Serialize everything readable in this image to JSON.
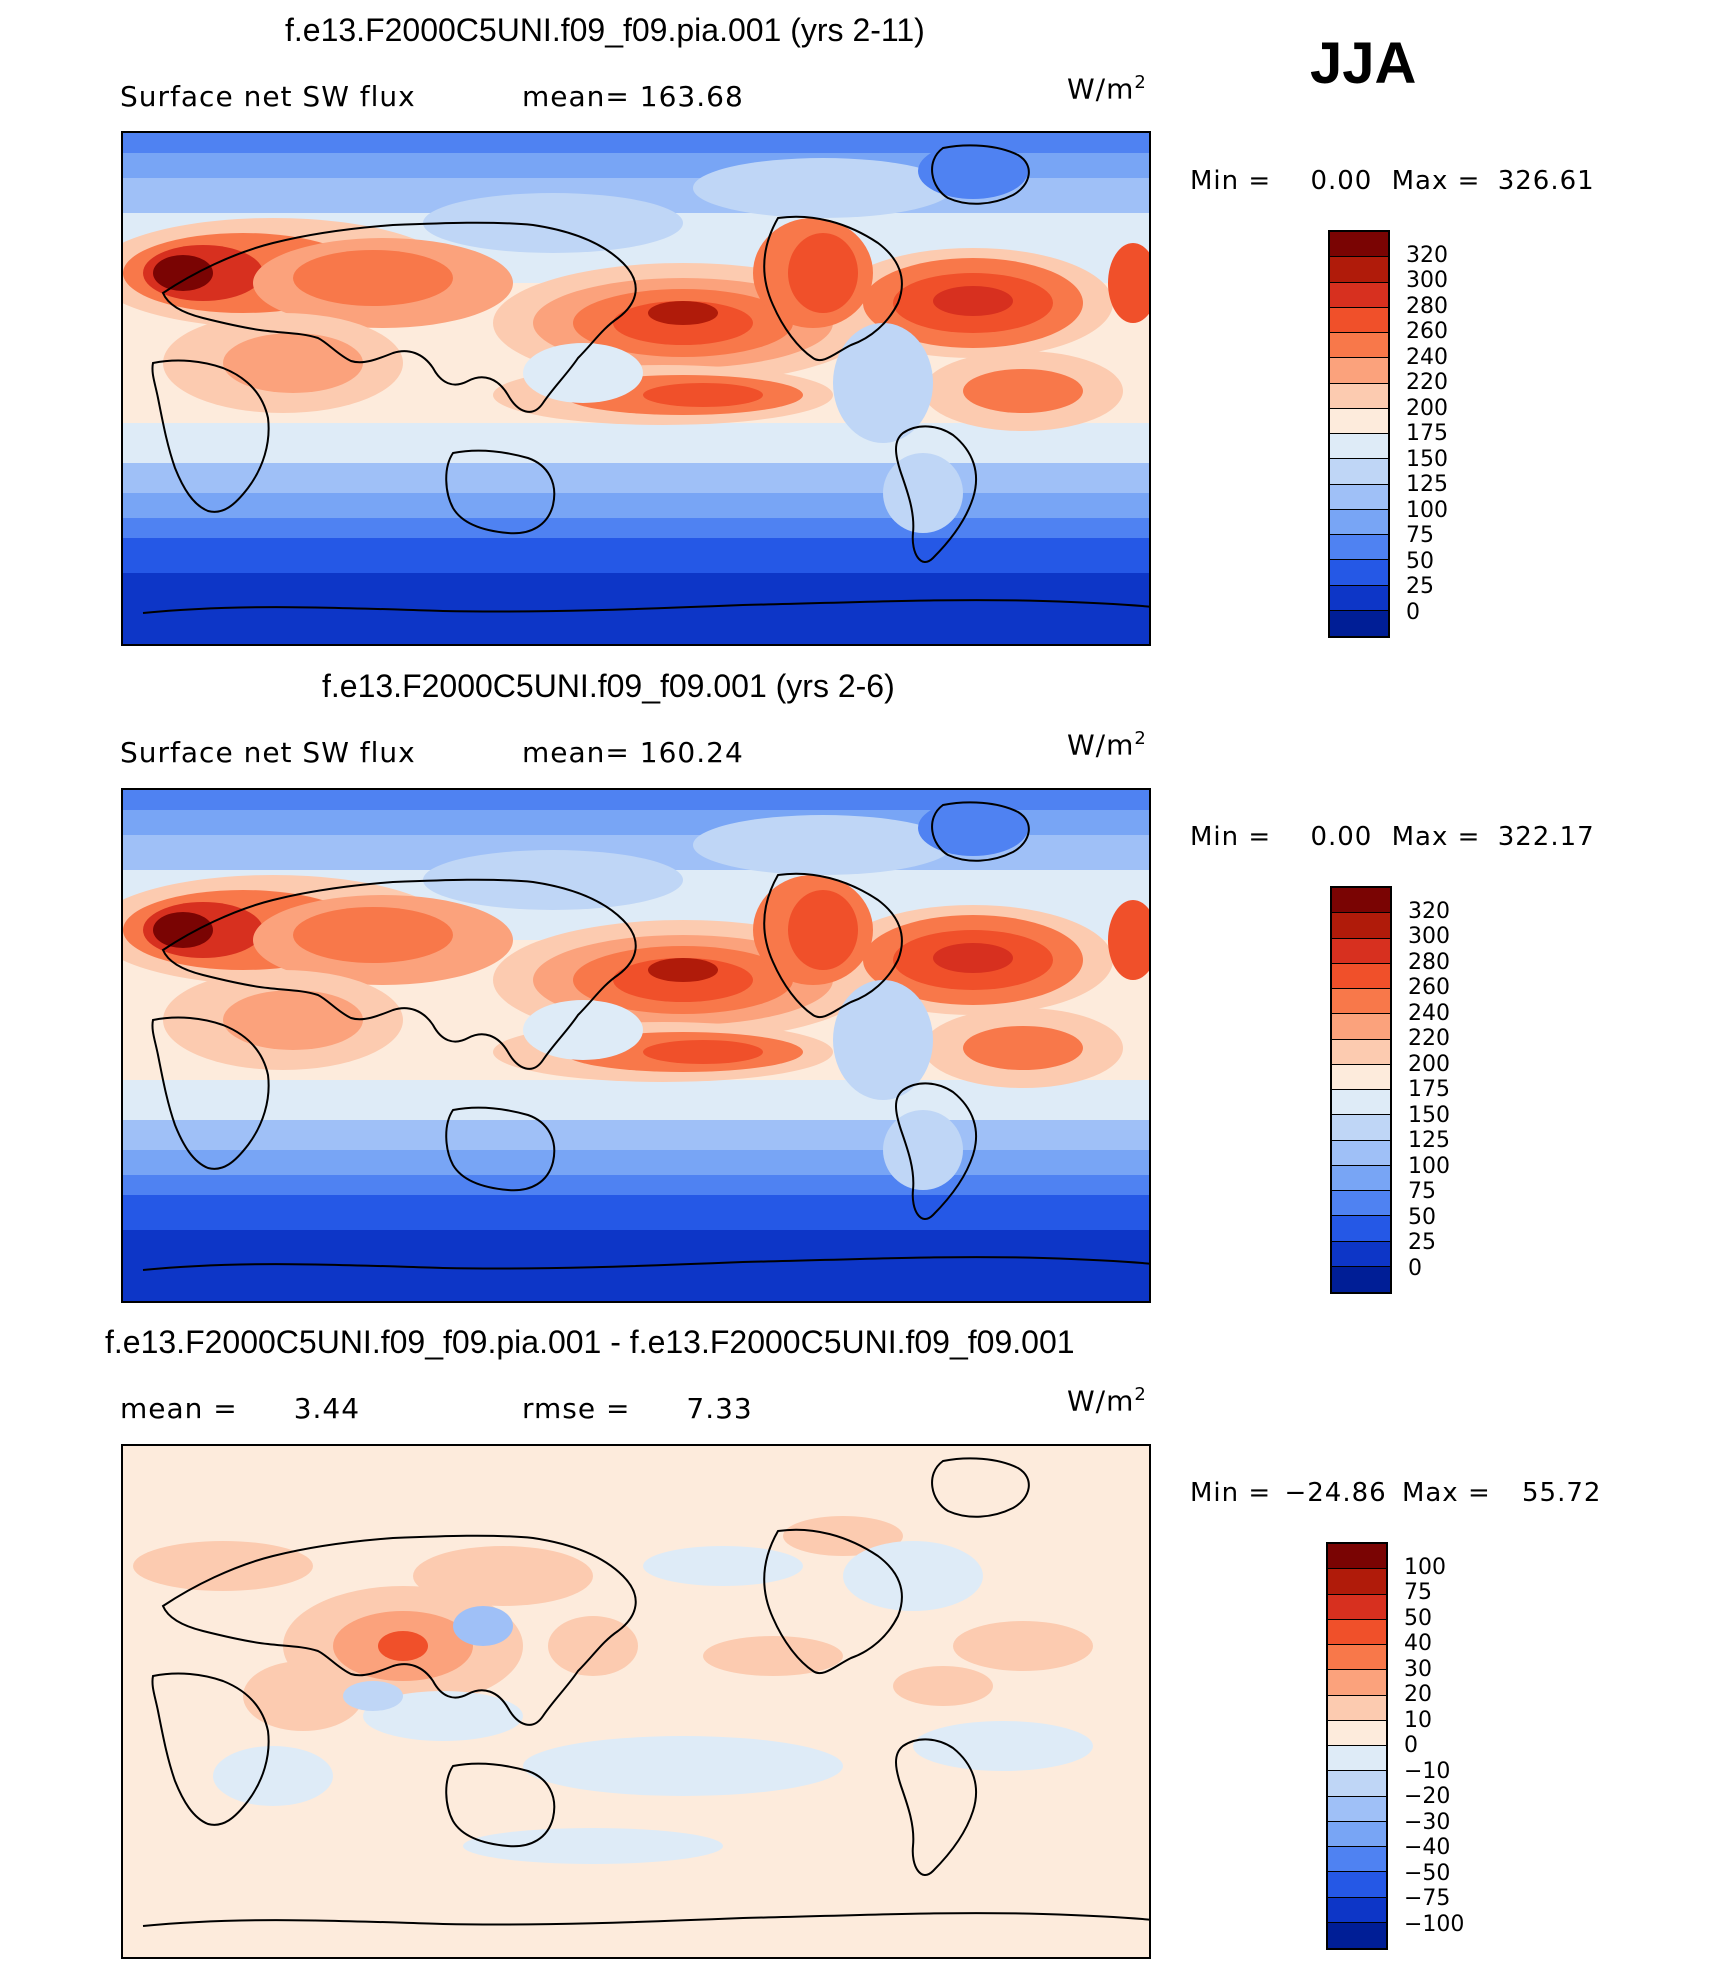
{
  "season": "JJA",
  "panels": [
    {
      "title": "f.e13.F2000C5UNI.f09_f09.pia.001 (yrs 2-11)",
      "variable": "Surface net SW flux",
      "stat1_label": "mean=",
      "stat1_value": "163.68",
      "units": "W/m",
      "units_sup": "2",
      "min_label": "Min =",
      "min_value": "0.00",
      "max_label": "Max =",
      "max_value": "326.61",
      "colorbar_labels": [
        "320",
        "300",
        "280",
        "260",
        "240",
        "220",
        "200",
        "175",
        "150",
        "125",
        "100",
        "75",
        "50",
        "25",
        "0"
      ]
    },
    {
      "title": "f.e13.F2000C5UNI.f09_f09.001 (yrs 2-6)",
      "variable": "Surface net SW flux",
      "stat1_label": "mean=",
      "stat1_value": "160.24",
      "units": "W/m",
      "units_sup": "2",
      "min_label": "Min =",
      "min_value": "0.00",
      "max_label": "Max =",
      "max_value": "322.17",
      "colorbar_labels": [
        "320",
        "300",
        "280",
        "260",
        "240",
        "220",
        "200",
        "175",
        "150",
        "125",
        "100",
        "75",
        "50",
        "25",
        "0"
      ]
    },
    {
      "title": "f.e13.F2000C5UNI.f09_f09.pia.001 - f.e13.F2000C5UNI.f09_f09.001",
      "stat1_label": "mean =",
      "stat1_value": "3.44",
      "stat2_label": "rmse =",
      "stat2_value": "7.33",
      "units": "W/m",
      "units_sup": "2",
      "min_label": "Min =",
      "min_value": "−24.86",
      "max_label": "Max =",
      "max_value": "55.72",
      "colorbar_labels": [
        "100",
        "75",
        "50",
        "40",
        "30",
        "20",
        "10",
        "0",
        "−10",
        "−20",
        "−30",
        "−40",
        "−50",
        "−75",
        "−100"
      ]
    }
  ],
  "colors": {
    "abs_scale": [
      "#7a0403",
      "#b01b0a",
      "#d7301f",
      "#f0502a",
      "#f8784a",
      "#fba27c",
      "#fccbb0",
      "#fdebdc",
      "#deebf7",
      "#bfd6f6",
      "#9fc0f7",
      "#78a5f5",
      "#4f82f2",
      "#2558e6",
      "#0d36c7",
      "#001e96"
    ],
    "diff_scale": [
      "#7a0403",
      "#b01b0a",
      "#d7301f",
      "#f0502a",
      "#f8784a",
      "#fba27c",
      "#fccbb0",
      "#fdebdc",
      "#deebf7",
      "#bfd6f6",
      "#9fc0f7",
      "#78a5f5",
      "#4f82f2",
      "#2558e6",
      "#0d36c7",
      "#001e96"
    ],
    "coast": "#000000"
  }
}
